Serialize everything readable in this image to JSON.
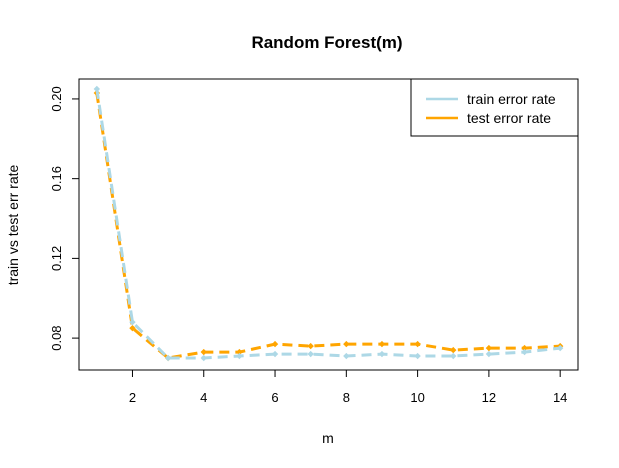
{
  "chart_data": {
    "type": "line",
    "title": "Random Forest(m)",
    "xlabel": "m",
    "ylabel": "train vs test err rate",
    "xlim": [
      0.5,
      14.5
    ],
    "ylim": [
      0.064,
      0.21
    ],
    "x": [
      1,
      2,
      3,
      4,
      5,
      6,
      7,
      8,
      9,
      10,
      11,
      12,
      13,
      14
    ],
    "x_ticks": [
      2,
      4,
      6,
      8,
      10,
      12,
      14
    ],
    "y_ticks": [
      0.08,
      0.12,
      0.16,
      0.2
    ],
    "y_tick_labels": [
      "0.08",
      "0.12",
      "0.16",
      "0.20"
    ],
    "grid": false,
    "legend_position": "top-right",
    "series": [
      {
        "name": "train error rate",
        "color": "#add8e6",
        "values": [
          0.205,
          0.088,
          0.07,
          0.07,
          0.071,
          0.072,
          0.072,
          0.071,
          0.072,
          0.071,
          0.071,
          0.072,
          0.073,
          0.075
        ]
      },
      {
        "name": "test error rate",
        "color": "#ffa500",
        "values": [
          0.203,
          0.085,
          0.07,
          0.073,
          0.073,
          0.077,
          0.076,
          0.077,
          0.077,
          0.077,
          0.074,
          0.075,
          0.075,
          0.076
        ]
      }
    ]
  }
}
